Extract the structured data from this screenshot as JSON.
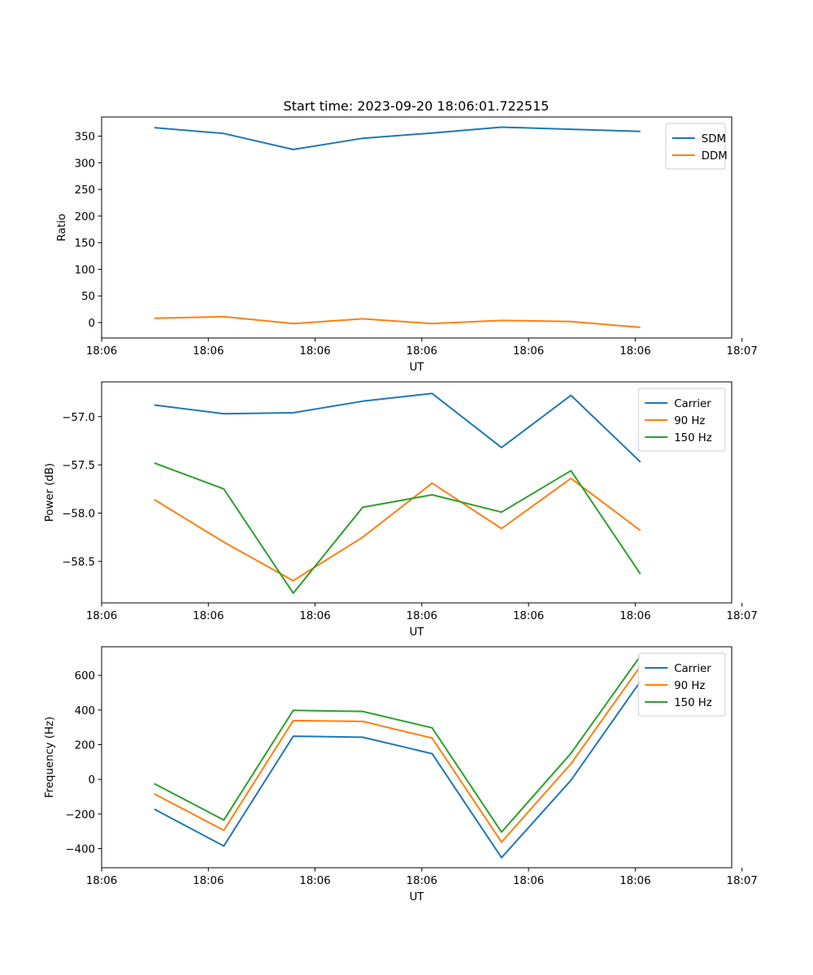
{
  "figure_title": "Start time: 2023-09-20 18:06:01.722515",
  "chart_data": [
    {
      "type": "line",
      "xlabel": "UT",
      "ylabel": "Ratio",
      "xlim": [
        0,
        9.8
      ],
      "ylim": [
        -29,
        386
      ],
      "xticks": [
        {
          "v": 0,
          "label": "18:06"
        },
        {
          "v": 1.66,
          "label": "18:06"
        },
        {
          "v": 3.32,
          "label": "18:06"
        },
        {
          "v": 4.98,
          "label": "18:06"
        },
        {
          "v": 6.64,
          "label": "18:06"
        },
        {
          "v": 8.3,
          "label": "18:06"
        },
        {
          "v": 9.96,
          "label": "18:07"
        }
      ],
      "yticks": [
        {
          "v": 0,
          "label": "0"
        },
        {
          "v": 50,
          "label": "50"
        },
        {
          "v": 100,
          "label": "100"
        },
        {
          "v": 150,
          "label": "150"
        },
        {
          "v": 200,
          "label": "200"
        },
        {
          "v": 250,
          "label": "250"
        },
        {
          "v": 300,
          "label": "300"
        },
        {
          "v": 350,
          "label": "350"
        }
      ],
      "x": [
        0.82,
        1.9,
        2.98,
        4.06,
        5.14,
        6.22,
        7.3,
        8.38
      ],
      "legend": "top-right",
      "series": [
        {
          "name": "SDM",
          "color": "#1f77b4",
          "values": [
            366,
            355,
            325,
            346,
            356,
            367,
            363,
            359
          ]
        },
        {
          "name": "DDM",
          "color": "#ff7f0e",
          "values": [
            8,
            11,
            -2,
            7,
            -2,
            4,
            2,
            -9
          ]
        }
      ]
    },
    {
      "type": "line",
      "xlabel": "UT",
      "ylabel": "Power (dB)",
      "xlim": [
        0,
        9.8
      ],
      "ylim": [
        -58.93,
        -56.64
      ],
      "xticks": [
        {
          "v": 0,
          "label": "18:06"
        },
        {
          "v": 1.66,
          "label": "18:06"
        },
        {
          "v": 3.32,
          "label": "18:06"
        },
        {
          "v": 4.98,
          "label": "18:06"
        },
        {
          "v": 6.64,
          "label": "18:06"
        },
        {
          "v": 8.3,
          "label": "18:06"
        },
        {
          "v": 9.96,
          "label": "18:07"
        }
      ],
      "yticks": [
        {
          "v": -57.0,
          "label": "−57.0"
        },
        {
          "v": -57.5,
          "label": "−57.5"
        },
        {
          "v": -58.0,
          "label": "−58.0"
        },
        {
          "v": -58.5,
          "label": "−58.5"
        }
      ],
      "x": [
        0.82,
        1.9,
        2.98,
        4.06,
        5.14,
        6.22,
        7.3,
        8.38
      ],
      "legend": "top-right",
      "series": [
        {
          "name": "Carrier",
          "color": "#1f77b4",
          "values": [
            -56.88,
            -56.97,
            -56.96,
            -56.84,
            -56.76,
            -57.32,
            -56.78,
            -57.47
          ]
        },
        {
          "name": "90 Hz",
          "color": "#ff7f0e",
          "values": [
            -57.86,
            -58.3,
            -58.7,
            -58.25,
            -57.69,
            -58.16,
            -57.64,
            -58.18
          ]
        },
        {
          "name": "150 Hz",
          "color": "#2ca02c",
          "values": [
            -57.48,
            -57.75,
            -58.83,
            -57.94,
            -57.81,
            -57.99,
            -57.56,
            -58.63
          ]
        }
      ]
    },
    {
      "type": "line",
      "xlabel": "UT",
      "ylabel": "Frequency (Hz)",
      "xlim": [
        0,
        9.8
      ],
      "ylim": [
        -510,
        765
      ],
      "xticks": [
        {
          "v": 0,
          "label": "18:06"
        },
        {
          "v": 1.66,
          "label": "18:06"
        },
        {
          "v": 3.32,
          "label": "18:06"
        },
        {
          "v": 4.98,
          "label": "18:06"
        },
        {
          "v": 6.64,
          "label": "18:06"
        },
        {
          "v": 8.3,
          "label": "18:06"
        },
        {
          "v": 9.96,
          "label": "18:07"
        }
      ],
      "yticks": [
        {
          "v": -400,
          "label": "−400"
        },
        {
          "v": -200,
          "label": "−200"
        },
        {
          "v": 0,
          "label": "0"
        },
        {
          "v": 200,
          "label": "200"
        },
        {
          "v": 400,
          "label": "400"
        },
        {
          "v": 600,
          "label": "600"
        }
      ],
      "x": [
        0.82,
        1.9,
        2.98,
        4.06,
        5.14,
        6.22,
        7.3,
        8.38
      ],
      "legend": "top-right",
      "series": [
        {
          "name": "Carrier",
          "color": "#1f77b4",
          "values": [
            -172,
            -385,
            249,
            243,
            148,
            -452,
            -5,
            565
          ]
        },
        {
          "name": "90 Hz",
          "color": "#ff7f0e",
          "values": [
            -84,
            -294,
            339,
            334,
            238,
            -362,
            90,
            653
          ]
        },
        {
          "name": "150 Hz",
          "color": "#2ca02c",
          "values": [
            -25,
            -235,
            398,
            392,
            297,
            -304,
            150,
            712
          ]
        }
      ]
    }
  ]
}
